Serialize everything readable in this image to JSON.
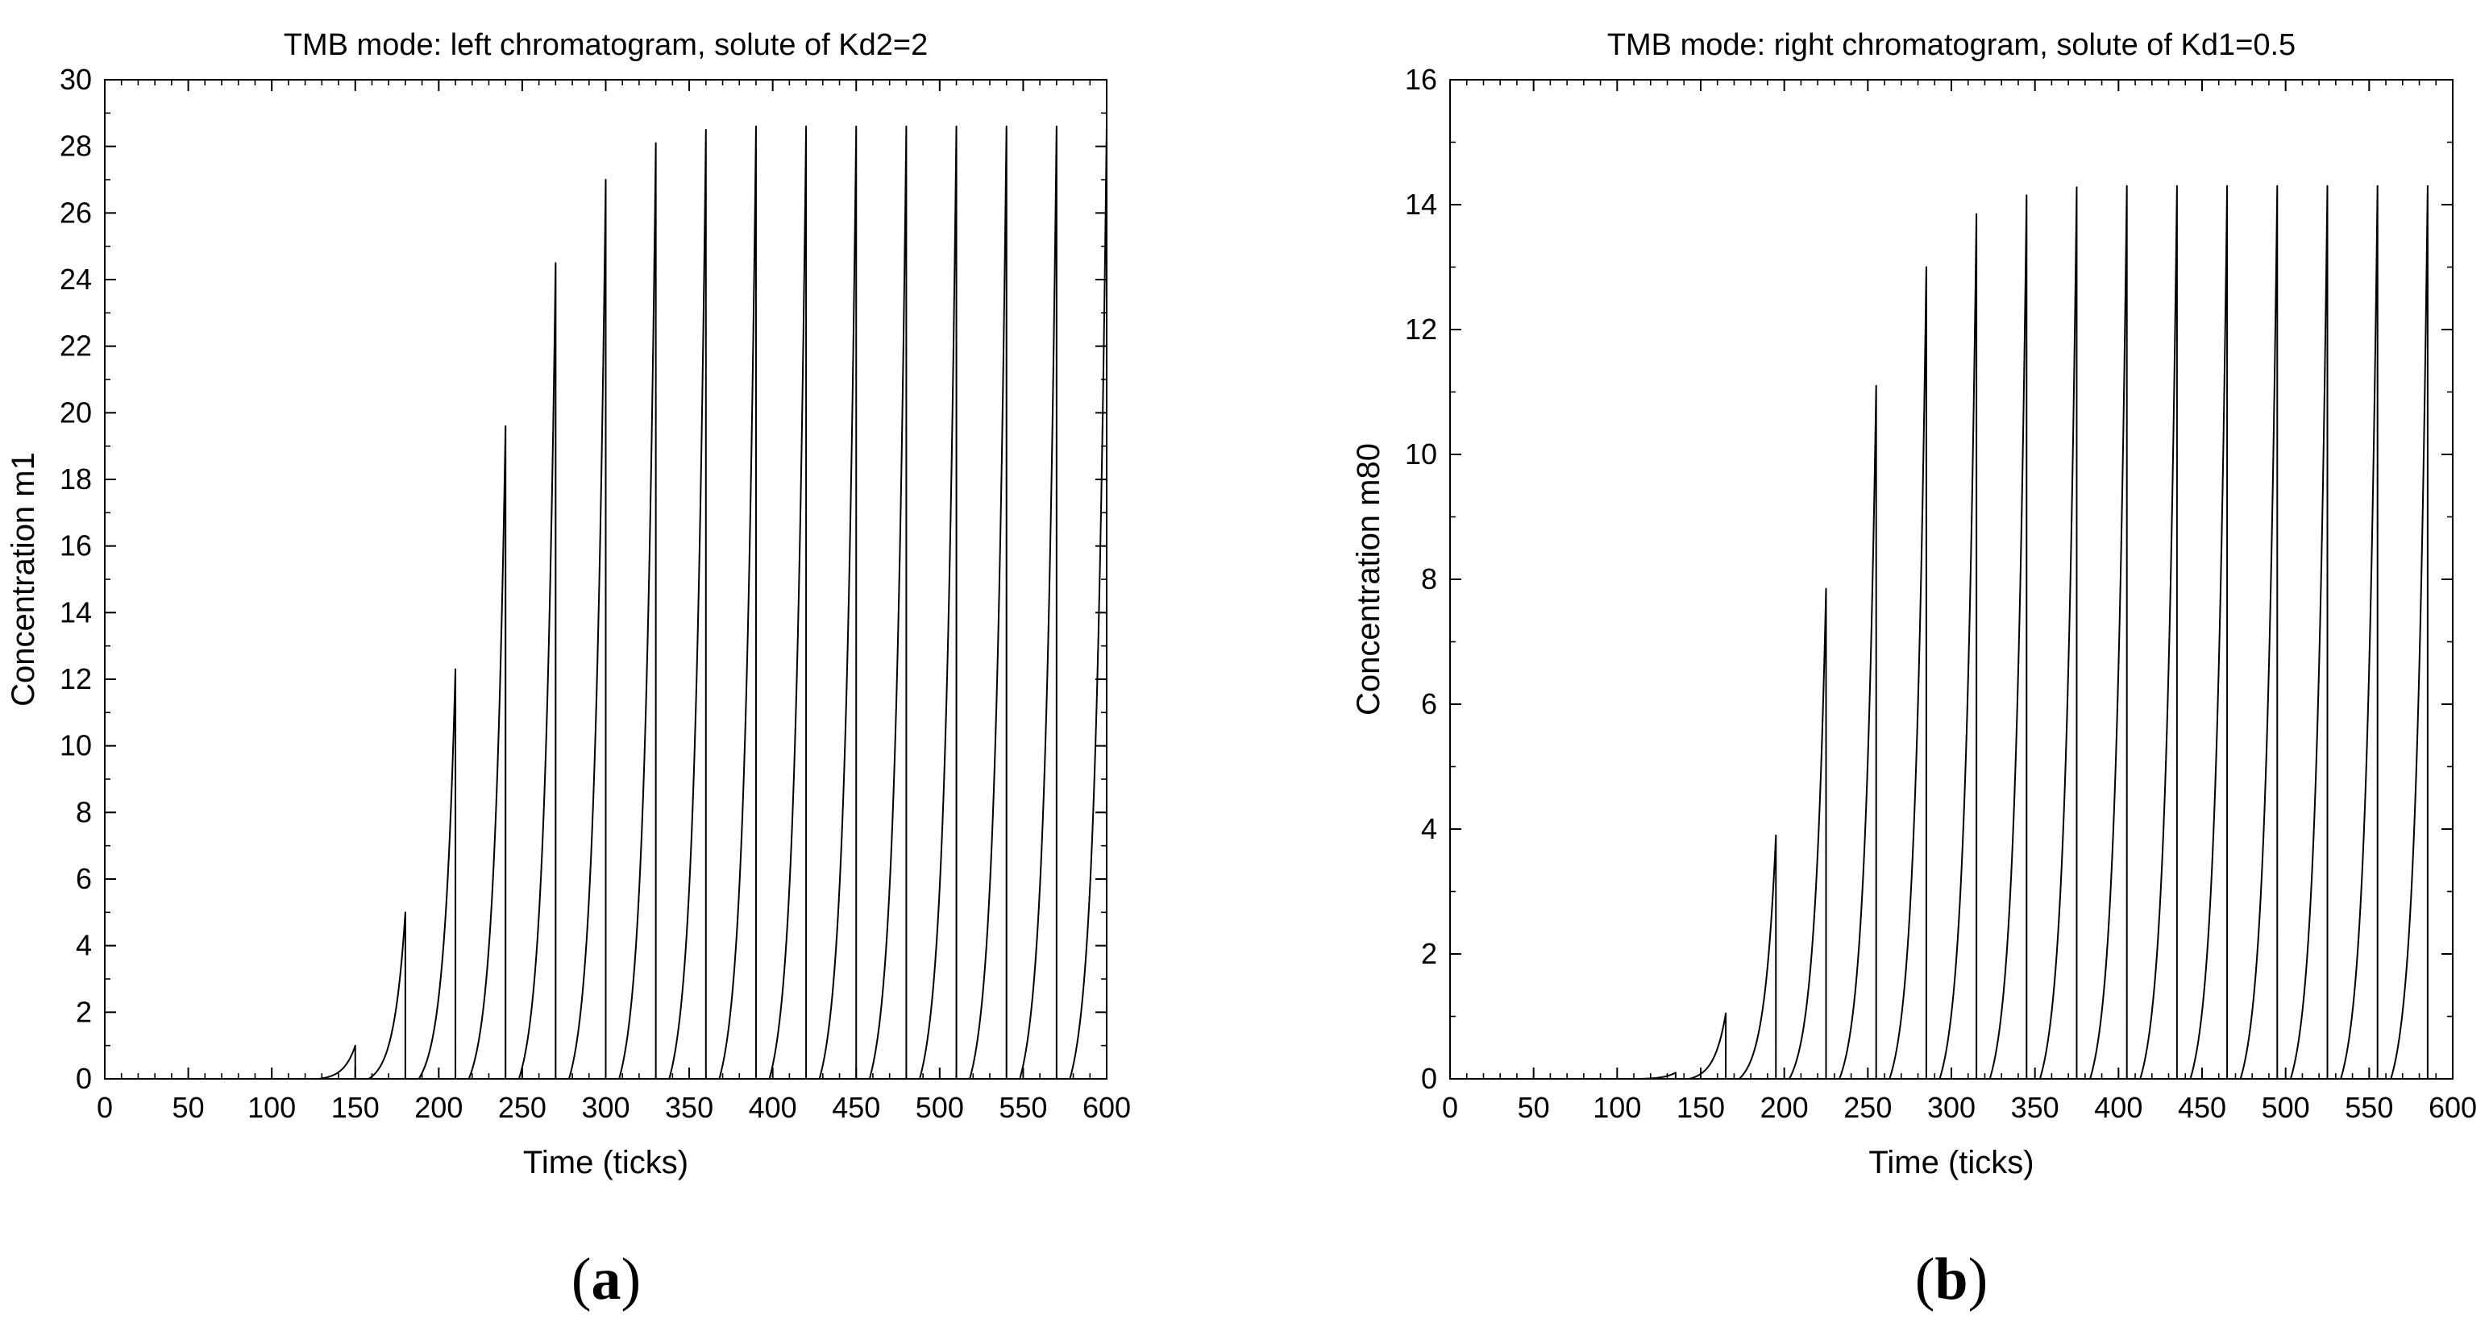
{
  "chart_data": [
    {
      "type": "line",
      "panel_label": "(a)",
      "title": "TMB mode: left chromatogram, solute of Kd2=2",
      "xlabel": "Time (ticks)",
      "ylabel": "Concentration m1",
      "xlim": [
        0,
        600
      ],
      "ylim": [
        0,
        30
      ],
      "xticks": [
        0,
        50,
        100,
        150,
        200,
        250,
        300,
        350,
        400,
        450,
        500,
        550,
        600
      ],
      "yticks": [
        0,
        2,
        4,
        6,
        8,
        10,
        12,
        14,
        16,
        18,
        20,
        22,
        24,
        26,
        28,
        30
      ],
      "grid": false,
      "series": [
        {
          "peak_times": [
            150,
            180,
            210,
            240,
            270,
            300,
            330,
            360,
            390,
            420,
            450,
            480,
            510,
            540,
            570,
            600
          ],
          "peak_heights": [
            1.0,
            5.0,
            12.3,
            19.6,
            24.5,
            27.0,
            28.1,
            28.5,
            28.6,
            28.6,
            28.6,
            28.6,
            28.6,
            28.6,
            28.6,
            28.6
          ]
        }
      ]
    },
    {
      "type": "line",
      "panel_label": "(b)",
      "title": "TMB mode: right chromatogram, solute of Kd1=0.5",
      "xlabel": "Time (ticks)",
      "ylabel": "Concentration m80",
      "xlim": [
        0,
        600
      ],
      "ylim": [
        0,
        16
      ],
      "xticks": [
        0,
        50,
        100,
        150,
        200,
        250,
        300,
        350,
        400,
        450,
        500,
        550,
        600
      ],
      "yticks": [
        0,
        2,
        4,
        6,
        8,
        10,
        12,
        14,
        16
      ],
      "grid": false,
      "series": [
        {
          "peak_times": [
            135,
            165,
            195,
            225,
            255,
            285,
            315,
            345,
            375,
            405,
            435,
            465,
            495,
            525,
            555,
            585
          ],
          "peak_heights": [
            0.1,
            1.05,
            3.9,
            7.85,
            11.1,
            13.0,
            13.85,
            14.15,
            14.28,
            14.3,
            14.3,
            14.3,
            14.3,
            14.3,
            14.3,
            14.3
          ]
        }
      ]
    }
  ]
}
